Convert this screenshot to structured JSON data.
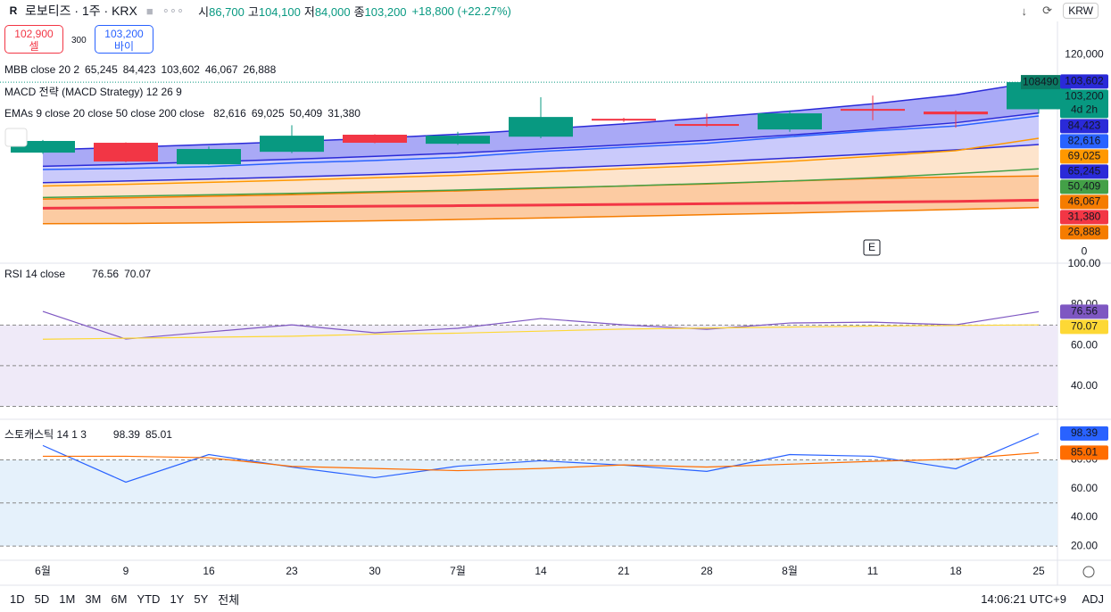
{
  "header": {
    "logo": "R",
    "symbol": "로보티즈 · 1주 · KRX",
    "ohlc": [
      {
        "key": "시",
        "value": "86,700"
      },
      {
        "key": "고",
        "value": "104,100"
      },
      {
        "key": "저",
        "value": "84,000"
      },
      {
        "key": "종",
        "value": "103,200"
      }
    ],
    "change": "+18,800 (+22.27%)",
    "currency": "KRW"
  },
  "trade": {
    "sell_price": "102,900",
    "sell": "셀",
    "spread": "300",
    "buy_price": "103,200",
    "buy": "바이"
  },
  "toolbar": {
    "ranges": [
      "1D",
      "5D",
      "1M",
      "3M",
      "6M",
      "YTD",
      "1Y",
      "5Y",
      "전체"
    ],
    "time": "14:06:21 UTC+9",
    "adj": "ADJ"
  },
  "chart_data": [
    {
      "type": "candlestick",
      "categories": [
        "6월",
        "9",
        "16",
        "23",
        "30",
        "7월",
        "14",
        "21",
        "28",
        "8월",
        "11",
        "18",
        "25"
      ],
      "open": [
        60300,
        66300,
        53200,
        60800,
        71200,
        65700,
        70000,
        80900,
        77700,
        74400,
        86900,
        85300,
        86700
      ],
      "high": [
        68000,
        66500,
        64000,
        77000,
        71500,
        73000,
        94000,
        81500,
        84000,
        86000,
        95000,
        86000,
        104100
      ],
      "low": [
        59500,
        54500,
        53000,
        60000,
        66000,
        65000,
        69000,
        79000,
        76000,
        73000,
        80000,
        75500,
        84000
      ],
      "close": [
        67400,
        54900,
        62500,
        70600,
        66300,
        70600,
        82000,
        79800,
        76600,
        84200,
        85800,
        83600,
        103200
      ],
      "up_color": "#089981",
      "down_color": "#f23645",
      "last_label": "103,200",
      "countdown": "4d 2h",
      "annotation": "108490",
      "event": "E",
      "ylim": [
        -7000,
        138000
      ],
      "yticks": [
        0,
        {
          "value": 120000,
          "label": "120,000"
        }
      ],
      "band_fills": [
        "#a9a9f6",
        "#cacafb",
        "#fde4cc",
        "#fccba2"
      ],
      "indicators": [
        {
          "title": "MBB close 20 2",
          "series": [
            {
              "color": "#2a2ad8",
              "values": [
                42000,
                43000,
                44200,
                45500,
                47000,
                48500,
                50500,
                52500,
                54500,
                57000,
                59500,
                62000,
                65245
              ],
              "last_label": "65,245"
            },
            {
              "color": "#2a2ad8",
              "values": [
                52000,
                53200,
                54700,
                56300,
                58000,
                60000,
                62500,
                65000,
                67800,
                71000,
                74500,
                78500,
                84423
              ],
              "last_label": "84,423"
            },
            {
              "color": "#2a2ad8",
              "values": [
                62000,
                63500,
                65200,
                67000,
                69000,
                71500,
                74500,
                77800,
                81500,
                85500,
                90000,
                95500,
                103602
              ],
              "last_label": "103,602"
            },
            {
              "color": "#f57c00",
              "values": [
                32000,
                32800,
                33700,
                34700,
                36000,
                37000,
                38500,
                40000,
                41200,
                43000,
                44500,
                45500,
                46067
              ],
              "last_label": "46,067"
            },
            {
              "color": "#f57c00",
              "values": [
                17000,
                17200,
                17600,
                18100,
                18800,
                19600,
                20500,
                21500,
                22500,
                23500,
                24600,
                25700,
                26888
              ],
              "last_label": "26,888"
            }
          ]
        },
        {
          "title": "MACD 전략 (MACD Strategy) 12 26 9",
          "series": []
        },
        {
          "title": "EMAs 9 close 20 close 50 close 200 close",
          "series": [
            {
              "color": "#2962ff",
              "values": [
                50000,
                50700,
                51800,
                54000,
                55500,
                57500,
                61000,
                63500,
                66000,
                70000,
                73500,
                76500,
                82616
              ],
              "last_label": "82,616"
            },
            {
              "color": "#ff9800",
              "values": [
                40000,
                41000,
                42200,
                43500,
                45000,
                46500,
                48500,
                50500,
                52500,
                55000,
                58000,
                61500,
                69025
              ],
              "last_label": "69,025"
            },
            {
              "color": "#43a047",
              "values": [
                33000,
                33800,
                34600,
                35500,
                36500,
                37500,
                38800,
                40000,
                41500,
                43000,
                45000,
                47500,
                50409
              ],
              "last_label": "50,409"
            },
            {
              "color": "#f23645",
              "values": [
                26500,
                26800,
                27100,
                27400,
                27700,
                28000,
                28400,
                28800,
                29200,
                29600,
                30100,
                30600,
                31380
              ],
              "last_label": "31,380"
            }
          ]
        }
      ]
    },
    {
      "type": "line",
      "title": "RSI 14 close",
      "ylim": [
        28,
        100
      ],
      "yticks": [
        {
          "value": 100,
          "label": "100.00"
        },
        {
          "value": 80,
          "label": "80.00"
        },
        {
          "value": 60,
          "label": "60.00"
        },
        {
          "value": 40,
          "label": "40.00"
        }
      ],
      "levels": [
        70,
        50,
        30
      ],
      "fill_color": "#efeaf8",
      "series": [
        {
          "color": "#7e57c2",
          "values": [
            76.7,
            63.1,
            66.6,
            70.1,
            66.2,
            68.4,
            73.2,
            70.1,
            67.9,
            71.0,
            71.4,
            70.1,
            76.56
          ],
          "last_label": "76.56"
        },
        {
          "color": "#fdd835",
          "values": [
            63.0,
            63.5,
            64.0,
            64.5,
            65.5,
            66.0,
            67.0,
            68.0,
            68.5,
            69.0,
            69.5,
            69.8,
            70.07
          ],
          "last_label": "70.07"
        }
      ]
    },
    {
      "type": "line",
      "title": "스토캐스틱 14 1 3",
      "ylim": [
        12,
        107
      ],
      "yticks": [
        {
          "value": 80,
          "label": "80.00"
        },
        {
          "value": 60,
          "label": "60.00"
        },
        {
          "value": 40,
          "label": "40.00"
        },
        {
          "value": 20,
          "label": "20.00"
        }
      ],
      "levels": [
        80,
        50,
        20
      ],
      "fill_color": "#e5f1fb",
      "series": [
        {
          "color": "#2962ff",
          "values": [
            90,
            64.5,
            83.7,
            75,
            67.6,
            75.6,
            79.4,
            76.3,
            72,
            83.7,
            82.5,
            73.8,
            98.39
          ],
          "last_label": "98.39"
        },
        {
          "color": "#ff6d00",
          "values": [
            82.5,
            82.5,
            81.5,
            75.5,
            74,
            72.5,
            74,
            76.5,
            75,
            77,
            79,
            80.5,
            85.01
          ],
          "last_label": "85.01"
        }
      ]
    }
  ]
}
